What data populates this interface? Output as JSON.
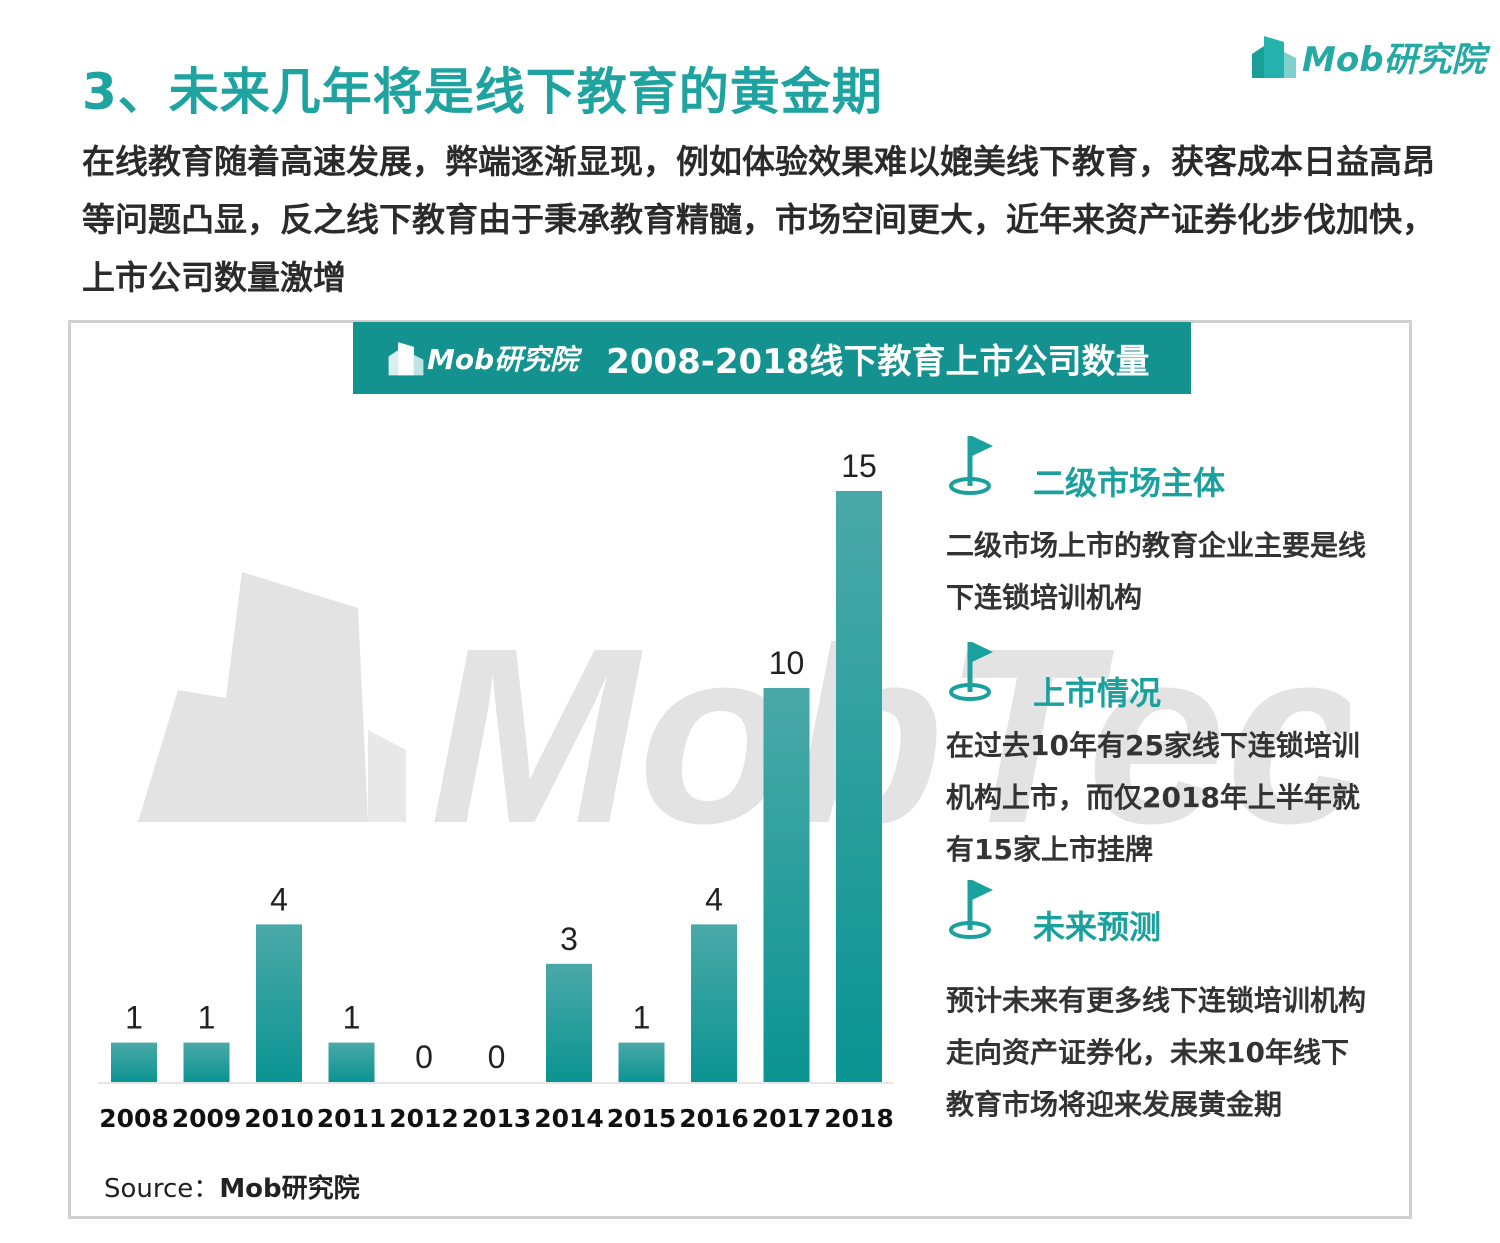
{
  "header": {
    "title": "3、未来几年将是线下教育的黄金期",
    "logo_text": "Mob研究院"
  },
  "intro": "在线教育随着高速发展，弊端逐渐显现，例如体验效果难以媲美线下教育，获客成本日益高昂等问题凸显，反之线下教育由于秉承教育精髓，市场空间更大，近年来资产证券化步伐加快，上市公司数量激增",
  "panel": {
    "logo_text": "Mob研究院",
    "source_label": "Source：",
    "source_value": "Mob研究院",
    "watermark": "MobTech"
  },
  "chart_data": {
    "type": "bar",
    "title": "2008-2018线下教育上市公司数量",
    "categories": [
      "2008",
      "2009",
      "2010",
      "2011",
      "2012",
      "2013",
      "2014",
      "2015",
      "2016",
      "2017",
      "2018"
    ],
    "values": [
      1,
      1,
      4,
      1,
      0,
      0,
      3,
      1,
      4,
      10,
      15
    ],
    "data_labels": true,
    "colors": {
      "bar_top": "#4aa9a8",
      "bar_bottom": "#0a9492",
      "accent": "#1fa3a0"
    }
  },
  "sections": [
    {
      "icon": "flag-icon",
      "title": "二级市场主体",
      "body": "二级市场上市的教育企业主要是线下连锁培训机构"
    },
    {
      "icon": "flag-icon",
      "title": "上市情况",
      "body": "在过去10年有25家线下连锁培训机构上市，而仅2018年上半年就有15家上市挂牌"
    },
    {
      "icon": "flag-icon",
      "title": "未来预测",
      "body": "预计未来有更多线下连锁培训机构走向资产证券化，未来10年线下教育市场将迎来发展黄金期"
    }
  ]
}
